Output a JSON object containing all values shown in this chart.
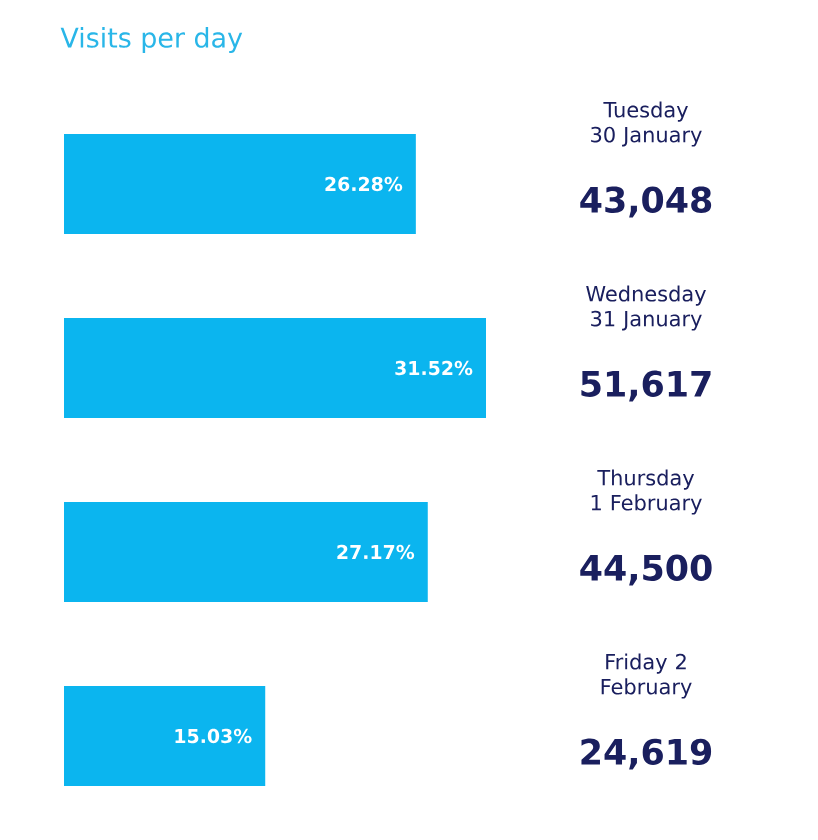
{
  "chart_data": {
    "type": "bar",
    "orientation": "horizontal",
    "title": "Visits per day",
    "categories": [
      "Tuesday 30 January",
      "Wednesday 31 January",
      "Thursday 1 February",
      "Friday 2 February"
    ],
    "values": [
      26.28,
      31.52,
      27.17,
      15.03
    ],
    "value_labels": [
      "26.28%",
      "31.52%",
      "27.17%",
      "15.03%"
    ],
    "color": "#0bb5ef",
    "annotations": [
      "43,048",
      "51,617",
      "44,500",
      "24,619"
    ]
  }
}
